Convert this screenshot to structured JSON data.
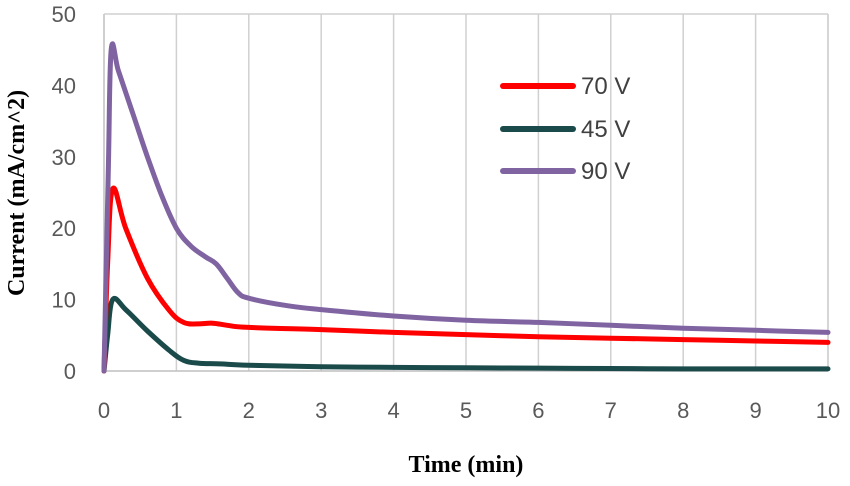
{
  "chart_data": {
    "type": "line",
    "title": "",
    "xlabel": "Time (min)",
    "ylabel": "Current (mA/cm^2)",
    "xlim": [
      0,
      10
    ],
    "ylim": [
      0,
      50
    ],
    "x_ticks": [
      0,
      1,
      2,
      3,
      4,
      5,
      6,
      7,
      8,
      9,
      10
    ],
    "y_ticks": [
      0,
      10,
      20,
      30,
      40,
      50
    ],
    "x_tick_labels": [
      "0",
      "1",
      "2",
      "3",
      "4",
      "5",
      "6",
      "7",
      "8",
      "9",
      "10"
    ],
    "y_tick_labels": [
      "0",
      "10",
      "20",
      "30",
      "40",
      "50"
    ],
    "grid": "vertical",
    "legend_position": "top-right",
    "series": [
      {
        "name": "70 V",
        "color": "#ff0000",
        "points": [
          [
            0,
            0
          ],
          [
            0.05,
            15
          ],
          [
            0.12,
            25.5
          ],
          [
            0.3,
            20
          ],
          [
            0.6,
            13
          ],
          [
            0.9,
            8.5
          ],
          [
            1.1,
            6.8
          ],
          [
            1.3,
            6.6
          ],
          [
            1.5,
            6.7
          ],
          [
            1.7,
            6.4
          ],
          [
            2,
            6.1
          ],
          [
            3,
            5.8
          ],
          [
            4,
            5.4
          ],
          [
            5,
            5.1
          ],
          [
            6,
            4.8
          ],
          [
            7,
            4.6
          ],
          [
            8,
            4.4
          ],
          [
            9,
            4.2
          ],
          [
            10,
            4.0
          ]
        ]
      },
      {
        "name": "45 V",
        "color": "#1b4a4a",
        "points": [
          [
            0,
            0
          ],
          [
            0.05,
            5
          ],
          [
            0.12,
            10
          ],
          [
            0.3,
            8.6
          ],
          [
            0.6,
            5.6
          ],
          [
            0.9,
            2.9
          ],
          [
            1.1,
            1.5
          ],
          [
            1.3,
            1.1
          ],
          [
            1.6,
            1.0
          ],
          [
            2,
            0.8
          ],
          [
            3,
            0.6
          ],
          [
            4,
            0.5
          ],
          [
            5,
            0.45
          ],
          [
            6,
            0.4
          ],
          [
            7,
            0.35
          ],
          [
            8,
            0.3
          ],
          [
            9,
            0.3
          ],
          [
            10,
            0.3
          ]
        ]
      },
      {
        "name": "90 V",
        "color": "#8064a2",
        "points": [
          [
            0,
            0
          ],
          [
            0.06,
            28
          ],
          [
            0.1,
            45
          ],
          [
            0.2,
            42
          ],
          [
            0.4,
            36
          ],
          [
            0.6,
            30
          ],
          [
            0.8,
            24.5
          ],
          [
            1.0,
            20
          ],
          [
            1.2,
            17.5
          ],
          [
            1.4,
            16
          ],
          [
            1.55,
            15
          ],
          [
            1.7,
            13
          ],
          [
            1.85,
            11
          ],
          [
            2,
            10.2
          ],
          [
            2.5,
            9.2
          ],
          [
            3,
            8.6
          ],
          [
            4,
            7.7
          ],
          [
            5,
            7.1
          ],
          [
            6,
            6.8
          ],
          [
            7,
            6.4
          ],
          [
            8,
            6.0
          ],
          [
            9,
            5.7
          ],
          [
            10,
            5.4
          ]
        ]
      }
    ]
  }
}
